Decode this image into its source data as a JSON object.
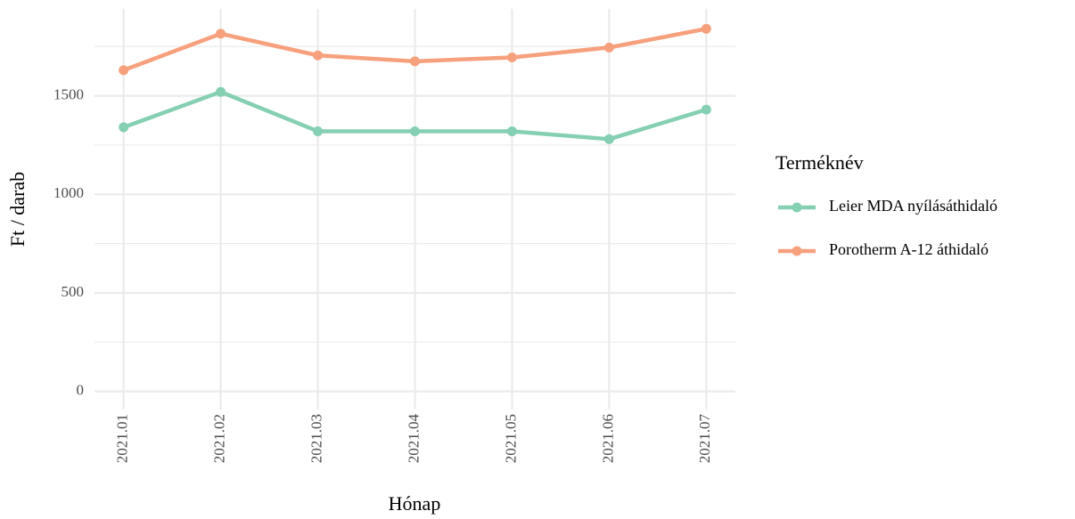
{
  "chart_data": {
    "type": "line",
    "x_label": "Hónap",
    "y_label": "Ft / darab",
    "legend_title": "Terméknév",
    "categories": [
      "2021.01",
      "2021.02",
      "2021.03",
      "2021.04",
      "2021.05",
      "2021.06",
      "2021.07"
    ],
    "series": [
      {
        "name": "Leier MDA nyílásáthidaló",
        "color": "#85cfb3",
        "values": [
          1340,
          1520,
          1320,
          1320,
          1320,
          1280,
          1430
        ]
      },
      {
        "name": "Porotherm A-12 áthidaló",
        "color": "#f7a07d",
        "values": [
          1630,
          1815,
          1705,
          1675,
          1695,
          1745,
          1840
        ]
      }
    ],
    "ylim": [
      -92,
      1932
    ],
    "yticks": [
      0,
      500,
      1000,
      1500
    ],
    "minor_yticks": [
      250,
      750,
      1250,
      1750
    ],
    "grid": true,
    "legend": "right"
  }
}
